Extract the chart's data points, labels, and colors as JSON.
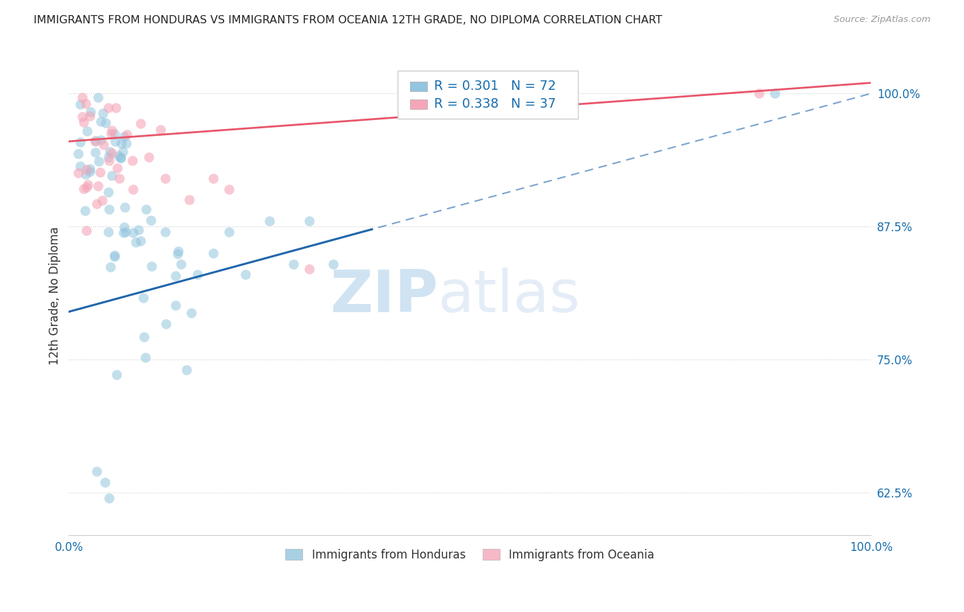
{
  "title": "IMMIGRANTS FROM HONDURAS VS IMMIGRANTS FROM OCEANIA 12TH GRADE, NO DIPLOMA CORRELATION CHART",
  "source": "Source: ZipAtlas.com",
  "ylabel": "12th Grade, No Diploma",
  "legend_entries": [
    "Immigrants from Honduras",
    "Immigrants from Oceania"
  ],
  "r_honduras": 0.301,
  "n_honduras": 72,
  "r_oceania": 0.338,
  "n_oceania": 37,
  "blue_color": "#92c5de",
  "pink_color": "#f4a6b8",
  "blue_line_color": "#2166ac",
  "pink_line_color": "#e8556a",
  "watermark_zip": "ZIP",
  "watermark_atlas": "atlas",
  "grid_color": "#cccccc",
  "axis_label_color": "#1a6faf",
  "ylim_low": 0.585,
  "ylim_high": 1.035,
  "xlim_low": 0.0,
  "xlim_high": 1.0,
  "ytick_vals": [
    0.625,
    0.75,
    0.875,
    1.0
  ],
  "ytick_labels": [
    "62.5%",
    "75.0%",
    "87.5%",
    "100.0%"
  ],
  "xtick_vals": [
    0.0,
    1.0
  ],
  "xtick_labels": [
    "0.0%",
    "100.0%"
  ]
}
